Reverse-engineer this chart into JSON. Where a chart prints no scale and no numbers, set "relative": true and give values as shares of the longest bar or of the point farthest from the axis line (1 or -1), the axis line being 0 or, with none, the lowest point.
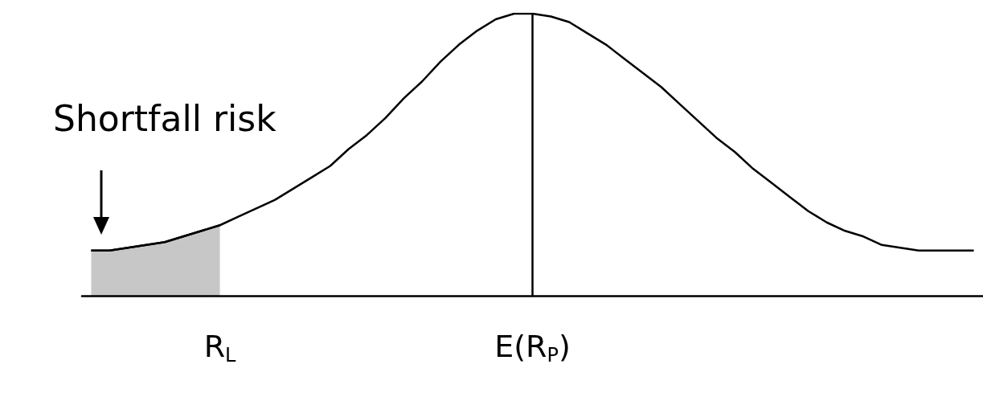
{
  "chart_data": {
    "type": "line",
    "relative": true,
    "marker": "none",
    "categories": [
      null,
      null,
      null,
      null,
      null,
      null,
      null,
      "R$_{L}$",
      null,
      null,
      null,
      null,
      null,
      null,
      null,
      null,
      null,
      null,
      null,
      null,
      null,
      null,
      null,
      null,
      "E(R$_{P}$)",
      null,
      null,
      null,
      null,
      null,
      null,
      null,
      null,
      null,
      null,
      null,
      null,
      null,
      null,
      null,
      null,
      null,
      null,
      null,
      null,
      null,
      null,
      null,
      null
    ],
    "series": [
      {
        "color": "#000000",
        "values": [
          0.16,
          0.16,
          0.17,
          0.18,
          0.19,
          0.21,
          0.23,
          0.25,
          0.28,
          0.31,
          0.34,
          0.38,
          0.42,
          0.46,
          0.52,
          0.57,
          0.63,
          0.7,
          0.76,
          0.83,
          0.89,
          0.94,
          0.98,
          1.0,
          1.0,
          0.99,
          0.97,
          0.93,
          0.89,
          0.84,
          0.79,
          0.74,
          0.68,
          0.62,
          0.56,
          0.51,
          0.45,
          0.4,
          0.35,
          0.3,
          0.26,
          0.23,
          0.21,
          0.18,
          0.17,
          0.16,
          0.16,
          0.16,
          0.16
        ]
      },
      {
        "type": "area",
        "color": "#000000",
        "values": [
          0.16,
          0.16,
          0.17,
          0.18,
          0.19,
          0.21,
          0.23,
          0.25,
          null,
          null,
          null,
          null,
          null,
          null,
          null,
          null,
          null,
          null,
          null,
          null,
          null,
          null,
          null,
          null,
          null,
          null,
          null,
          null,
          null,
          null,
          null,
          null,
          null,
          null,
          null,
          null,
          null,
          null,
          null,
          null,
          null,
          null,
          null,
          null,
          null,
          null,
          null,
          null,
          null
        ]
      }
    ],
    "ref_lines": [
      {
        "axis": "x",
        "value": "E(R$_{P}$)"
      }
    ],
    "annotations": [
      "Shortfall risk"
    ]
  }
}
